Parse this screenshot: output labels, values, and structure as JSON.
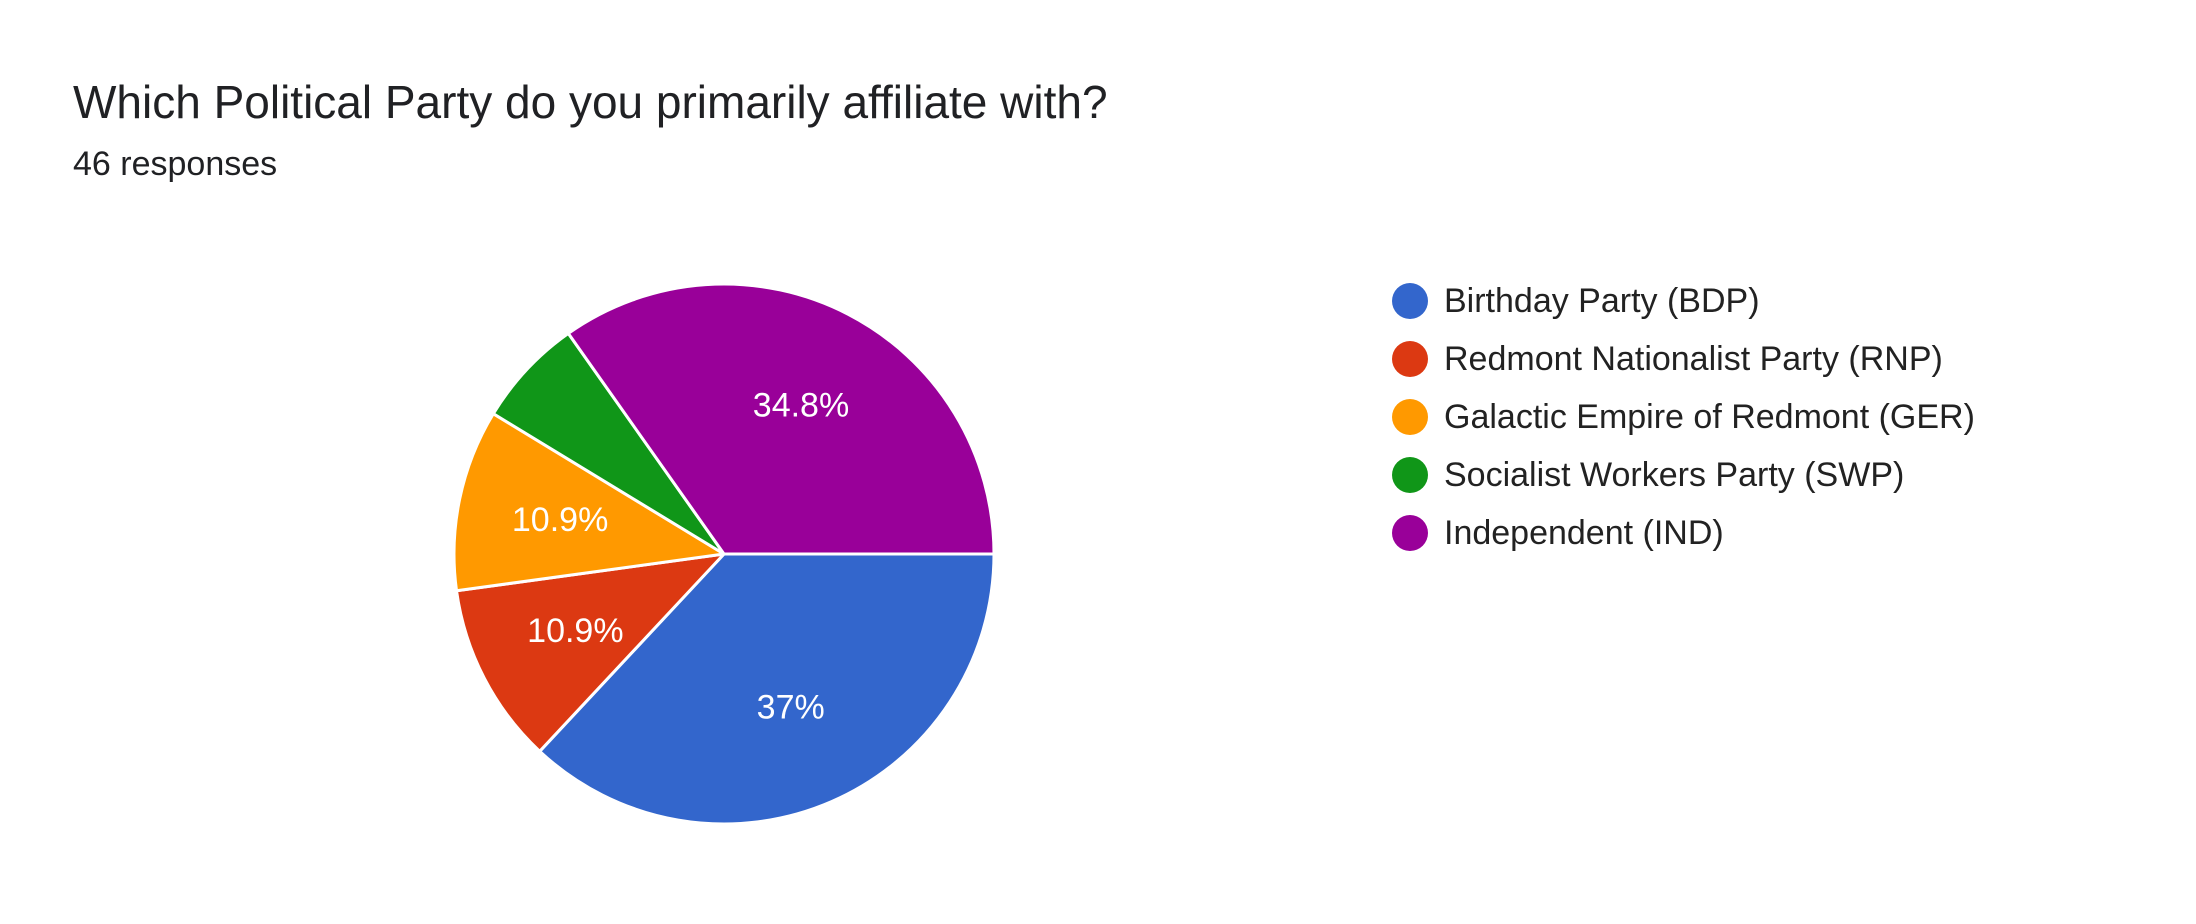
{
  "header": {
    "title": "Which Political Party do you primarily affiliate with?",
    "subtitle": "46 responses"
  },
  "chart_data": {
    "type": "pie",
    "title": "Which Political Party do you primarily affiliate with?",
    "subtitle": "46 responses",
    "total_responses": 46,
    "legend_position": "right",
    "slices": [
      {
        "label": "Birthday Party (BDP)",
        "count": 17,
        "percent": 37.0,
        "percent_label": "37%",
        "color": "#3366cc"
      },
      {
        "label": "Redmont Nationalist Party (RNP)",
        "count": 5,
        "percent": 10.9,
        "percent_label": "10.9%",
        "color": "#dc3912"
      },
      {
        "label": "Galactic Empire of Redmont (GER)",
        "count": 5,
        "percent": 10.9,
        "percent_label": "10.9%",
        "color": "#ff9900"
      },
      {
        "label": "Socialist Workers Party (SWP)",
        "count": 3,
        "percent": 6.5,
        "percent_label": "",
        "color": "#109618"
      },
      {
        "label": "Independent (IND)",
        "count": 16,
        "percent": 34.8,
        "percent_label": "34.8%",
        "color": "#990099"
      }
    ]
  }
}
